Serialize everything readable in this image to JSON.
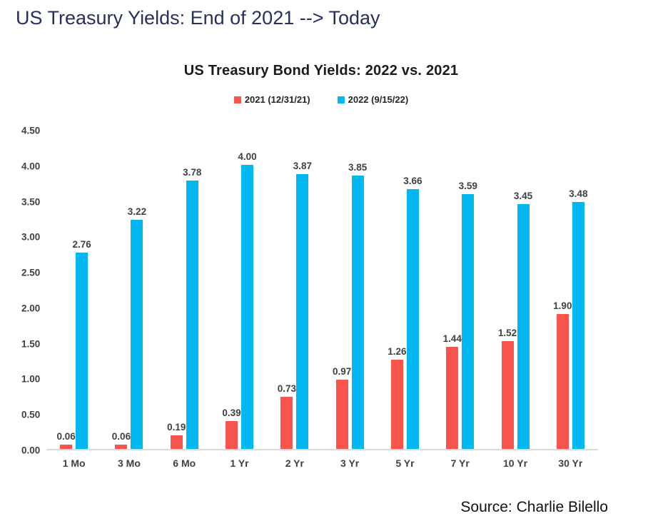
{
  "page": {
    "title": "US Treasury Yields: End of 2021 --> Today",
    "source": "Source: Charlie Bilello"
  },
  "colors": {
    "page_title": "#25305B",
    "series_2021_red": "#F8544C",
    "series_2022_blue": "#00B7F0",
    "axis_line": "#D9D9D9",
    "label_text": "#404040"
  },
  "chart_data": {
    "type": "bar",
    "title": "US Treasury Bond Yields: 2022 vs. 2021",
    "categories": [
      "1 Mo",
      "3 Mo",
      "6 Mo",
      "1 Yr",
      "2 Yr",
      "3 Yr",
      "5 Yr",
      "7 Yr",
      "10 Yr",
      "30 Yr"
    ],
    "series": [
      {
        "name": "2021 (12/31/21)",
        "color": "#F8544C",
        "values": [
          0.06,
          0.06,
          0.19,
          0.39,
          0.73,
          0.97,
          1.26,
          1.44,
          1.52,
          1.9
        ]
      },
      {
        "name": "2022 (9/15/22)",
        "color": "#00B7F0",
        "values": [
          2.76,
          3.22,
          3.78,
          4.0,
          3.87,
          3.85,
          3.66,
          3.59,
          3.45,
          3.48
        ]
      }
    ],
    "xlabel": "",
    "ylabel": "",
    "ylim": [
      0,
      4.5
    ],
    "yticks": [
      0.0,
      0.5,
      1.0,
      1.5,
      2.0,
      2.5,
      3.0,
      3.5,
      4.0,
      4.5
    ],
    "grid": false,
    "legend_position": "top",
    "data_labels": true,
    "value_format": "2dp"
  }
}
